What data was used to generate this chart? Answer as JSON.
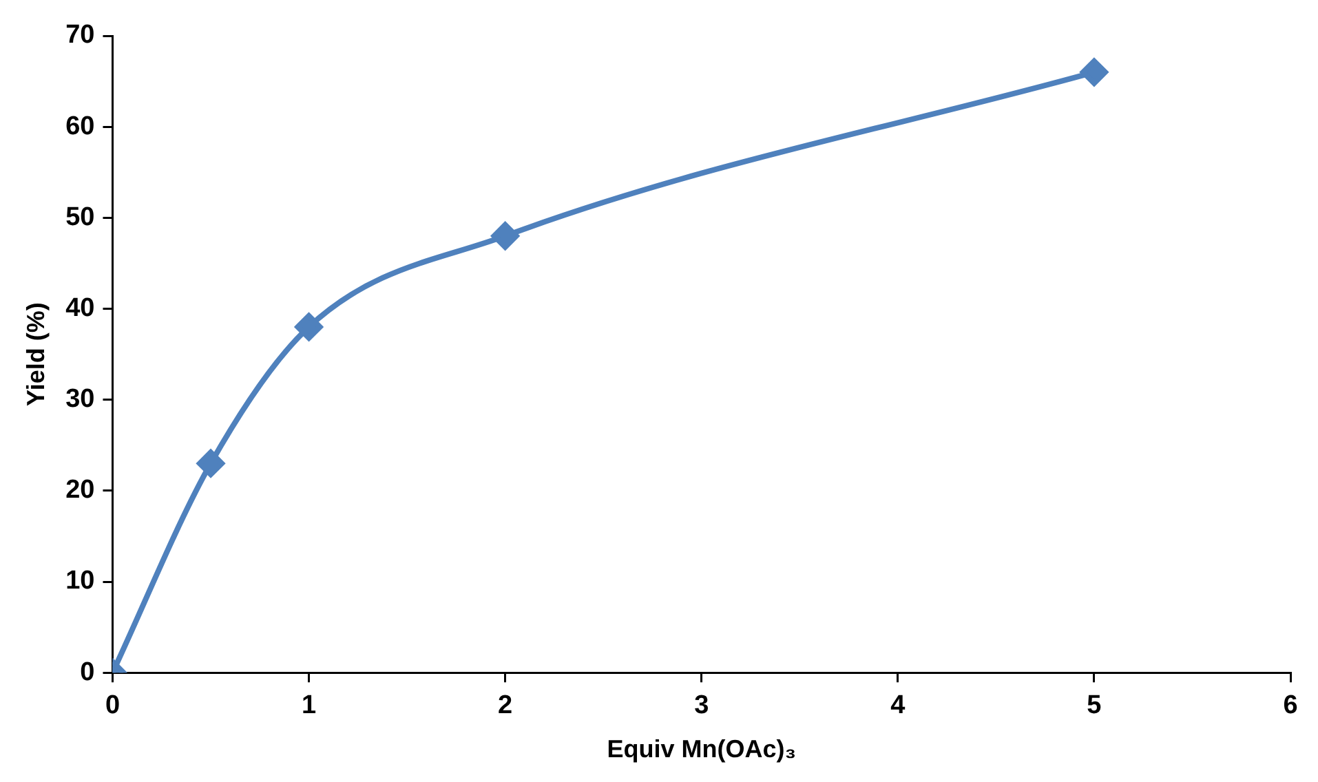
{
  "chart_data": {
    "type": "line",
    "xlabel": "Equiv Mn(OAc)₃",
    "ylabel": "Yield (%)",
    "x": [
      0,
      0.5,
      1,
      2,
      5
    ],
    "series": [
      {
        "color": "#4f81bd",
        "values": [
          0,
          23,
          38,
          48,
          66
        ]
      }
    ],
    "xlim": [
      0,
      6
    ],
    "xticks": [
      0,
      1,
      2,
      3,
      4,
      5,
      6
    ],
    "ylim": [
      0,
      70
    ],
    "yticks": [
      0,
      10,
      20,
      30,
      40,
      50,
      60,
      70
    ],
    "grid": false,
    "legend": false,
    "marker": "diamond",
    "line_style": "solid"
  }
}
